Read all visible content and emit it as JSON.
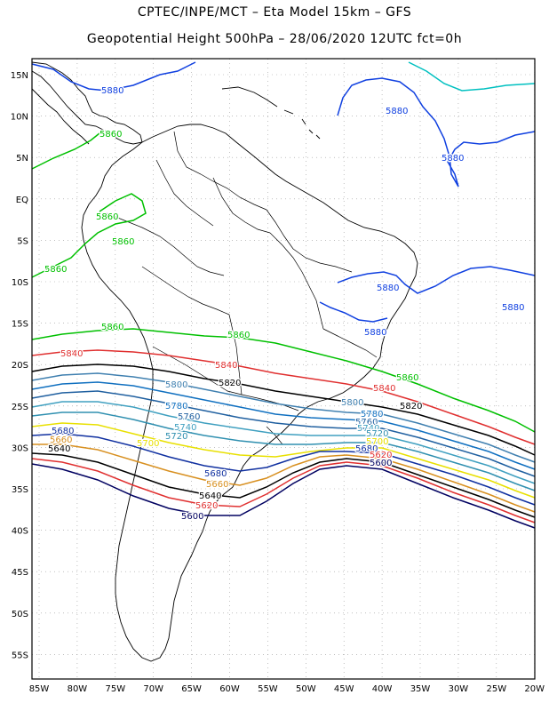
{
  "title_line1": "CPTEC/INPE/MCT –  Eta Model 15km – GFS",
  "title_line2": "Geopotential Height 500hPa – 28/06/2020 12UTC fct=0h",
  "lat_labels": [
    "15N",
    "10N",
    "5N",
    "EQ",
    "5S",
    "10S",
    "15S",
    "20S",
    "25S",
    "30S",
    "35S",
    "40S",
    "45S",
    "50S",
    "55S"
  ],
  "lon_labels": [
    "85W",
    "80W",
    "75W",
    "70W",
    "65W",
    "60W",
    "55W",
    "50W",
    "45W",
    "40W",
    "35W",
    "30W",
    "25W",
    "20W"
  ],
  "contour_colors": {
    "5600": "#000060",
    "5620": "#e03030",
    "5640": "#000000",
    "5660": "#d89020",
    "5680": "#1030a0",
    "5700": "#e8e000",
    "5720": "#3090b0",
    "5740": "#40a0c0",
    "5760": "#2060a0",
    "5780": "#1070c0",
    "5800": "#4080b0",
    "5820": "#000000",
    "5840": "#e03030",
    "5860": "#00c000",
    "5880": "#1040e0",
    "5900": "#00c0c0"
  },
  "contour_labels": [
    {
      "text": "5880",
      "level": "5880"
    },
    {
      "text": "5880",
      "level": "5880"
    },
    {
      "text": "5880",
      "level": "5880"
    },
    {
      "text": "5880",
      "level": "5880"
    },
    {
      "text": "5880",
      "level": "5880"
    },
    {
      "text": "5880",
      "level": "5880"
    },
    {
      "text": "5860",
      "level": "5860"
    },
    {
      "text": "5860",
      "level": "5860"
    },
    {
      "text": "5860",
      "level": "5860"
    },
    {
      "text": "5860",
      "level": "5860"
    },
    {
      "text": "5860",
      "level": "5860"
    },
    {
      "text": "5860",
      "level": "5860"
    },
    {
      "text": "5860",
      "level": "5860"
    },
    {
      "text": "5840",
      "level": "5840"
    },
    {
      "text": "5840",
      "level": "5840"
    },
    {
      "text": "5840",
      "level": "5840"
    },
    {
      "text": "5820",
      "level": "5820"
    },
    {
      "text": "5820",
      "level": "5820"
    },
    {
      "text": "5800",
      "level": "5800"
    },
    {
      "text": "5800",
      "level": "5800"
    },
    {
      "text": "5780",
      "level": "5780"
    },
    {
      "text": "5780",
      "level": "5780"
    },
    {
      "text": "5760",
      "level": "5760"
    },
    {
      "text": "5760",
      "level": "5760"
    },
    {
      "text": "5740",
      "level": "5740"
    },
    {
      "text": "5740",
      "level": "5740"
    },
    {
      "text": "5720",
      "level": "5720"
    },
    {
      "text": "5720",
      "level": "5720"
    },
    {
      "text": "5700",
      "level": "5700"
    },
    {
      "text": "5700",
      "level": "5700"
    },
    {
      "text": "5680",
      "level": "5680"
    },
    {
      "text": "5680",
      "level": "5680"
    },
    {
      "text": "5680",
      "level": "5680"
    },
    {
      "text": "5660",
      "level": "5660"
    },
    {
      "text": "5660",
      "level": "5660"
    },
    {
      "text": "5640",
      "level": "5640"
    },
    {
      "text": "5640",
      "level": "5640"
    },
    {
      "text": "5620",
      "level": "5620"
    },
    {
      "text": "5620",
      "level": "5620"
    },
    {
      "text": "5600",
      "level": "5600"
    },
    {
      "text": "5600",
      "level": "5600"
    }
  ]
}
